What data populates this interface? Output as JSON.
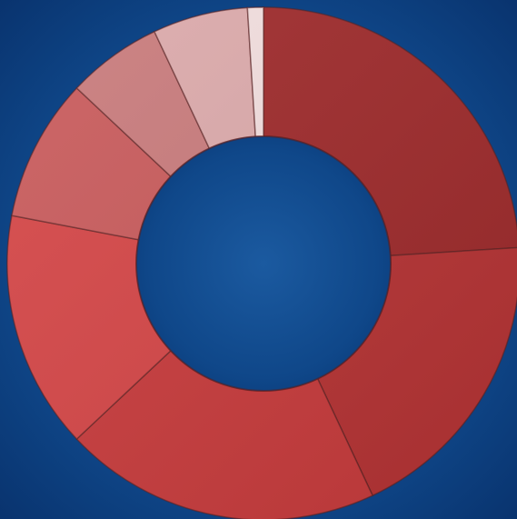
{
  "chart_data": {
    "type": "donut",
    "values": [
      24,
      19,
      20,
      15,
      9,
      6,
      6,
      1
    ],
    "colors": [
      "#9e2a2b",
      "#b63334",
      "#c83b3c",
      "#d54647",
      "#c95b5c",
      "#c97b7c",
      "#dcaaab",
      "#f2dede"
    ]
  }
}
